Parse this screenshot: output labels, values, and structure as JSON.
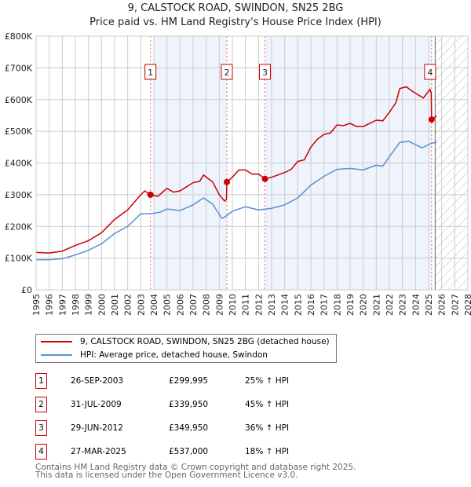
{
  "title": "9, CALSTOCK ROAD, SWINDON, SN25 2BG",
  "subtitle": "Price paid vs. HM Land Registry's House Price Index (HPI)",
  "chart_data": {
    "type": "line",
    "title": "9, CALSTOCK ROAD, SWINDON, SN25 2BG",
    "subtitle": "Price paid vs. HM Land Registry's House Price Index (HPI)",
    "xlim": [
      1995,
      2028
    ],
    "ylim": [
      0,
      800000
    ],
    "x_ticks": [
      "1995",
      "1996",
      "1997",
      "1998",
      "1999",
      "2000",
      "2001",
      "2002",
      "2003",
      "2004",
      "2005",
      "2006",
      "2007",
      "2008",
      "2009",
      "2010",
      "2011",
      "2012",
      "2013",
      "2014",
      "2015",
      "2016",
      "2017",
      "2018",
      "2019",
      "2020",
      "2021",
      "2022",
      "2023",
      "2024",
      "2025",
      "2026",
      "2027",
      "2028"
    ],
    "y_ticks": [
      {
        "v": 0,
        "label": "£0"
      },
      {
        "v": 100000,
        "label": "£100K"
      },
      {
        "v": 200000,
        "label": "£200K"
      },
      {
        "v": 300000,
        "label": "£300K"
      },
      {
        "v": 400000,
        "label": "£400K"
      },
      {
        "v": 500000,
        "label": "£500K"
      },
      {
        "v": 600000,
        "label": "£600K"
      },
      {
        "v": 700000,
        "label": "£700K"
      },
      {
        "v": 800000,
        "label": "£800K"
      }
    ],
    "grid": true,
    "series": [
      {
        "name": "9, CALSTOCK ROAD, SWINDON, SN25 2BG (detached house)",
        "color": "#cc0000",
        "points": [
          [
            1995,
            118
          ],
          [
            1996,
            116
          ],
          [
            1997,
            122
          ],
          [
            1998,
            140
          ],
          [
            1999,
            155
          ],
          [
            2000,
            180
          ],
          [
            2001,
            222
          ],
          [
            2002,
            252
          ],
          [
            2003,
            300
          ],
          [
            2003.3,
            312
          ],
          [
            2003.74,
            300
          ],
          [
            2004.3,
            295
          ],
          [
            2005,
            320
          ],
          [
            2005.5,
            308
          ],
          [
            2006,
            312
          ],
          [
            2007,
            338
          ],
          [
            2007.5,
            342
          ],
          [
            2007.8,
            362
          ],
          [
            2008.5,
            340
          ],
          [
            2009,
            300
          ],
          [
            2009.4,
            280
          ],
          [
            2009.55,
            285
          ],
          [
            2009.58,
            340
          ],
          [
            2010,
            355
          ],
          [
            2010.5,
            378
          ],
          [
            2011,
            378
          ],
          [
            2011.5,
            365
          ],
          [
            2012,
            365
          ],
          [
            2012.49,
            350
          ],
          [
            2013,
            355
          ],
          [
            2014,
            370
          ],
          [
            2014.5,
            380
          ],
          [
            2015,
            405
          ],
          [
            2015.5,
            410
          ],
          [
            2016,
            450
          ],
          [
            2016.5,
            475
          ],
          [
            2017,
            490
          ],
          [
            2017.5,
            495
          ],
          [
            2018,
            520
          ],
          [
            2018.5,
            518
          ],
          [
            2019,
            525
          ],
          [
            2019.5,
            515
          ],
          [
            2020,
            515
          ],
          [
            2020.5,
            525
          ],
          [
            2021,
            535
          ],
          [
            2021.5,
            533
          ],
          [
            2022,
            560
          ],
          [
            2022.5,
            590
          ],
          [
            2022.8,
            635
          ],
          [
            2023.3,
            640
          ],
          [
            2023.8,
            625
          ],
          [
            2024.6,
            605
          ],
          [
            2025.1,
            632
          ],
          [
            2025.2,
            620
          ],
          [
            2025.23,
            537
          ],
          [
            2025.6,
            548
          ]
        ]
      },
      {
        "name": "HPI: Average price, detached house, Swindon",
        "color": "#5b8fd4",
        "points": [
          [
            1995,
            95
          ],
          [
            1996,
            95
          ],
          [
            1997,
            98
          ],
          [
            1998,
            110
          ],
          [
            1999,
            125
          ],
          [
            2000,
            145
          ],
          [
            2001,
            178
          ],
          [
            2002,
            200
          ],
          [
            2003,
            240
          ],
          [
            2003.75,
            240
          ],
          [
            2004.5,
            245
          ],
          [
            2005,
            255
          ],
          [
            2006,
            250
          ],
          [
            2007,
            268
          ],
          [
            2007.8,
            290
          ],
          [
            2008.5,
            270
          ],
          [
            2009.2,
            225
          ],
          [
            2009.6,
            235
          ],
          [
            2010,
            248
          ],
          [
            2011,
            262
          ],
          [
            2012,
            252
          ],
          [
            2013,
            257
          ],
          [
            2014,
            268
          ],
          [
            2015,
            290
          ],
          [
            2016,
            330
          ],
          [
            2017,
            358
          ],
          [
            2018,
            380
          ],
          [
            2019,
            383
          ],
          [
            2020,
            378
          ],
          [
            2021,
            393
          ],
          [
            2021.5,
            390
          ],
          [
            2022,
            420
          ],
          [
            2022.8,
            465
          ],
          [
            2023.5,
            468
          ],
          [
            2024.5,
            448
          ],
          [
            2025.2,
            462
          ],
          [
            2025.6,
            465
          ]
        ]
      }
    ],
    "y_units": "thousands GBP",
    "sales": [
      {
        "n": "1",
        "x": 2003.74,
        "date": "26-SEP-2003",
        "price": "£299,995",
        "value": 299995,
        "hpi": "25% ↑ HPI"
      },
      {
        "n": "2",
        "x": 2009.58,
        "date": "31-JUL-2009",
        "price": "£339,950",
        "value": 339950,
        "hpi": "45% ↑ HPI"
      },
      {
        "n": "3",
        "x": 2012.49,
        "date": "29-JUN-2012",
        "price": "£349,950",
        "value": 349950,
        "hpi": "36% ↑ HPI"
      },
      {
        "n": "4",
        "x": 2025.23,
        "date": "27-MAR-2025",
        "price": "£537,000",
        "value": 537000,
        "hpi": "18% ↑ HPI"
      }
    ],
    "shaded_ranges": [
      [
        2004,
        2009.58
      ],
      [
        2012.49,
        2025.23
      ]
    ],
    "forecast_hatch_from": 2025.5
  },
  "footer": [
    "Contains HM Land Registry data © Crown copyright and database right 2025.",
    "This data is licensed under the Open Government Licence v3.0."
  ]
}
